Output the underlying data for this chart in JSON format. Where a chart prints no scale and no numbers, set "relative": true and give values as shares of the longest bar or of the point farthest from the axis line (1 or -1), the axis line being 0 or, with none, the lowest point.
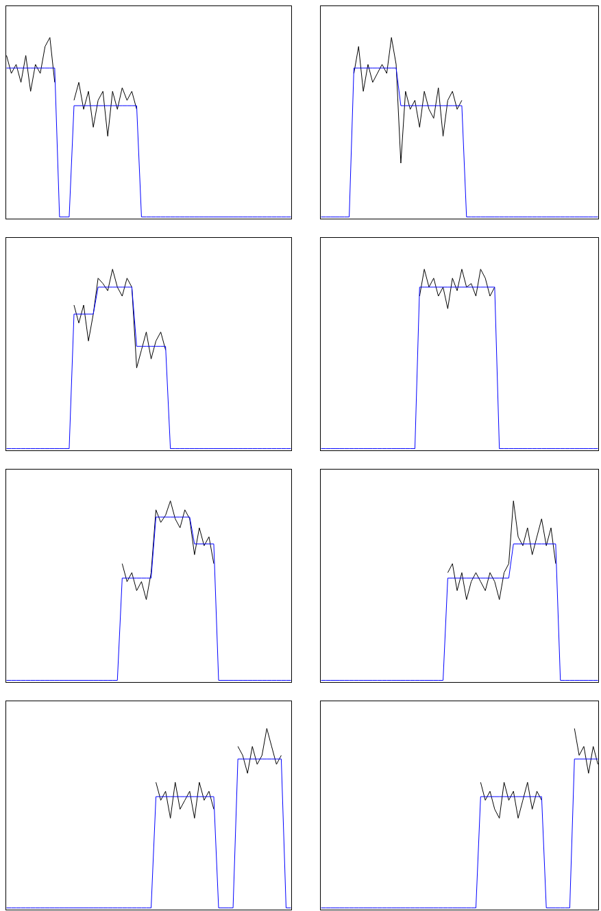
{
  "chart_data": [
    {
      "type": "line",
      "relative": true,
      "categories": [
        null,
        null,
        null,
        null,
        null,
        null,
        null,
        null,
        null,
        null,
        null,
        null,
        null,
        null,
        null,
        null,
        null,
        null,
        null,
        null,
        null,
        null,
        null,
        null,
        null,
        null,
        null,
        null,
        null,
        null,
        null,
        null,
        null,
        null,
        null,
        null,
        null,
        null,
        null,
        null,
        null,
        null,
        null,
        null,
        null,
        null,
        null,
        null,
        null,
        null,
        null,
        null,
        null,
        null,
        null,
        null,
        null,
        null,
        null,
        null
      ],
      "series": [
        {
          "color": "#000000",
          "values": [
            0.9,
            0.8,
            0.85,
            0.75,
            0.9,
            0.7,
            0.85,
            0.8,
            0.95,
            1.0,
            0.75,
            null,
            null,
            null,
            0.65,
            0.75,
            0.6,
            0.7,
            0.5,
            0.65,
            0.7,
            0.45,
            0.7,
            0.6,
            0.72,
            0.65,
            0.7,
            0.6,
            null,
            null,
            null,
            null,
            null,
            null,
            null,
            null,
            null,
            null,
            null,
            null,
            null,
            null,
            null,
            null,
            null,
            null,
            null,
            null,
            null,
            null,
            null,
            null,
            null,
            null,
            null,
            null,
            null,
            null,
            null,
            null
          ]
        },
        {
          "color": "#0000ff",
          "values": [
            0.83,
            0.83,
            0.83,
            0.83,
            0.83,
            0.83,
            0.83,
            0.83,
            0.83,
            0.83,
            0.83,
            0,
            0,
            0,
            0.62,
            0.62,
            0.62,
            0.62,
            0.62,
            0.62,
            0.62,
            0.62,
            0.62,
            0.62,
            0.62,
            0.62,
            0.62,
            0.62,
            0,
            0,
            0,
            0,
            0,
            0,
            0,
            0,
            0,
            0,
            0,
            0,
            0,
            0,
            0,
            0,
            0,
            0,
            0,
            0,
            0,
            0,
            0,
            0,
            0,
            0,
            0,
            0,
            0,
            0,
            0,
            0
          ]
        }
      ]
    },
    {
      "type": "line",
      "relative": true,
      "categories": [
        null,
        null,
        null,
        null,
        null,
        null,
        null,
        null,
        null,
        null,
        null,
        null,
        null,
        null,
        null,
        null,
        null,
        null,
        null,
        null,
        null,
        null,
        null,
        null,
        null,
        null,
        null,
        null,
        null,
        null,
        null,
        null,
        null,
        null,
        null,
        null,
        null,
        null,
        null,
        null,
        null,
        null,
        null,
        null,
        null,
        null,
        null,
        null,
        null,
        null,
        null,
        null,
        null,
        null,
        null,
        null,
        null,
        null,
        null,
        null
      ],
      "series": [
        {
          "color": "#000000",
          "values": [
            null,
            null,
            null,
            null,
            null,
            null,
            null,
            0.8,
            0.95,
            0.7,
            0.85,
            0.75,
            0.8,
            0.85,
            0.8,
            1.0,
            0.85,
            0.3,
            0.7,
            0.6,
            0.65,
            0.5,
            0.7,
            0.6,
            0.55,
            0.72,
            0.45,
            0.65,
            0.7,
            0.6,
            0.65,
            null,
            null,
            null,
            null,
            null,
            null,
            null,
            null,
            null,
            null,
            null,
            null,
            null,
            null,
            null,
            null,
            null,
            null,
            null,
            null,
            null,
            null,
            null,
            null,
            null,
            null,
            null,
            null,
            null
          ]
        },
        {
          "color": "#0000ff",
          "values": [
            0,
            0,
            0,
            0,
            0,
            0,
            0,
            0.83,
            0.83,
            0.83,
            0.83,
            0.83,
            0.83,
            0.83,
            0.83,
            0.83,
            0.83,
            0.62,
            0.62,
            0.62,
            0.62,
            0.62,
            0.62,
            0.62,
            0.62,
            0.62,
            0.62,
            0.62,
            0.62,
            0.62,
            0.62,
            0,
            0,
            0,
            0,
            0,
            0,
            0,
            0,
            0,
            0,
            0,
            0,
            0,
            0,
            0,
            0,
            0,
            0,
            0,
            0,
            0,
            0,
            0,
            0,
            0,
            0,
            0,
            0,
            0
          ]
        }
      ]
    },
    {
      "type": "line",
      "relative": true,
      "categories": [
        null,
        null,
        null,
        null,
        null,
        null,
        null,
        null,
        null,
        null,
        null,
        null,
        null,
        null,
        null,
        null,
        null,
        null,
        null,
        null,
        null,
        null,
        null,
        null,
        null,
        null,
        null,
        null,
        null,
        null,
        null,
        null,
        null,
        null,
        null,
        null,
        null,
        null,
        null,
        null,
        null,
        null,
        null,
        null,
        null,
        null,
        null,
        null,
        null,
        null,
        null,
        null,
        null,
        null,
        null,
        null,
        null,
        null,
        null,
        null
      ],
      "series": [
        {
          "color": "#000000",
          "values": [
            null,
            null,
            null,
            null,
            null,
            null,
            null,
            null,
            null,
            null,
            null,
            null,
            null,
            null,
            0.8,
            0.7,
            0.8,
            0.6,
            0.75,
            0.95,
            0.92,
            0.88,
            1.0,
            0.9,
            0.85,
            0.95,
            0.9,
            0.45,
            0.55,
            0.65,
            0.5,
            0.6,
            0.65,
            0.55,
            null,
            null,
            null,
            null,
            null,
            null,
            null,
            null,
            null,
            null,
            null,
            null,
            null,
            null,
            null,
            null,
            null,
            null,
            null,
            null,
            null,
            null,
            null,
            null,
            null,
            null
          ]
        },
        {
          "color": "#0000ff",
          "values": [
            0,
            0,
            0,
            0,
            0,
            0,
            0,
            0,
            0,
            0,
            0,
            0,
            0,
            0,
            0.75,
            0.75,
            0.75,
            0.75,
            0.75,
            0.9,
            0.9,
            0.9,
            0.9,
            0.9,
            0.9,
            0.9,
            0.9,
            0.57,
            0.57,
            0.57,
            0.57,
            0.57,
            0.57,
            0.57,
            0,
            0,
            0,
            0,
            0,
            0,
            0,
            0,
            0,
            0,
            0,
            0,
            0,
            0,
            0,
            0,
            0,
            0,
            0,
            0,
            0,
            0,
            0,
            0,
            0,
            0
          ]
        }
      ]
    },
    {
      "type": "line",
      "relative": true,
      "categories": [
        null,
        null,
        null,
        null,
        null,
        null,
        null,
        null,
        null,
        null,
        null,
        null,
        null,
        null,
        null,
        null,
        null,
        null,
        null,
        null,
        null,
        null,
        null,
        null,
        null,
        null,
        null,
        null,
        null,
        null,
        null,
        null,
        null,
        null,
        null,
        null,
        null,
        null,
        null,
        null,
        null,
        null,
        null,
        null,
        null,
        null,
        null,
        null,
        null,
        null,
        null,
        null,
        null,
        null,
        null,
        null,
        null,
        null,
        null,
        null
      ],
      "series": [
        {
          "color": "#000000",
          "values": [
            null,
            null,
            null,
            null,
            null,
            null,
            null,
            null,
            null,
            null,
            null,
            null,
            null,
            null,
            null,
            null,
            null,
            null,
            null,
            null,
            null,
            0.85,
            1.0,
            0.9,
            0.95,
            0.85,
            0.9,
            0.78,
            0.95,
            0.88,
            1.0,
            0.9,
            0.92,
            0.85,
            1.0,
            0.95,
            0.85,
            0.9,
            null,
            null,
            null,
            null,
            null,
            null,
            null,
            null,
            null,
            null,
            null,
            null,
            null,
            null,
            null,
            null,
            null,
            null,
            null,
            null,
            null,
            null
          ]
        },
        {
          "color": "#0000ff",
          "values": [
            0,
            0,
            0,
            0,
            0,
            0,
            0,
            0,
            0,
            0,
            0,
            0,
            0,
            0,
            0,
            0,
            0,
            0,
            0,
            0,
            0,
            0.9,
            0.9,
            0.9,
            0.9,
            0.9,
            0.9,
            0.9,
            0.9,
            0.9,
            0.9,
            0.9,
            0.9,
            0.9,
            0.9,
            0.9,
            0.9,
            0.9,
            0,
            0,
            0,
            0,
            0,
            0,
            0,
            0,
            0,
            0,
            0,
            0,
            0,
            0,
            0,
            0,
            0,
            0,
            0,
            0,
            0,
            0
          ]
        }
      ]
    },
    {
      "type": "line",
      "relative": true,
      "categories": [
        null,
        null,
        null,
        null,
        null,
        null,
        null,
        null,
        null,
        null,
        null,
        null,
        null,
        null,
        null,
        null,
        null,
        null,
        null,
        null,
        null,
        null,
        null,
        null,
        null,
        null,
        null,
        null,
        null,
        null,
        null,
        null,
        null,
        null,
        null,
        null,
        null,
        null,
        null,
        null,
        null,
        null,
        null,
        null,
        null,
        null,
        null,
        null,
        null,
        null,
        null,
        null,
        null,
        null,
        null,
        null,
        null,
        null,
        null,
        null
      ],
      "series": [
        {
          "color": "#000000",
          "values": [
            null,
            null,
            null,
            null,
            null,
            null,
            null,
            null,
            null,
            null,
            null,
            null,
            null,
            null,
            null,
            null,
            null,
            null,
            null,
            null,
            null,
            null,
            null,
            null,
            0.65,
            0.55,
            0.6,
            0.5,
            0.55,
            0.45,
            0.6,
            0.95,
            0.88,
            0.92,
            1.0,
            0.9,
            0.85,
            0.95,
            0.9,
            0.7,
            0.85,
            0.75,
            0.8,
            0.65,
            null,
            null,
            null,
            null,
            null,
            null,
            null,
            null,
            null,
            null,
            null,
            null,
            null,
            null,
            null,
            null
          ]
        },
        {
          "color": "#0000ff",
          "values": [
            0,
            0,
            0,
            0,
            0,
            0,
            0,
            0,
            0,
            0,
            0,
            0,
            0,
            0,
            0,
            0,
            0,
            0,
            0,
            0,
            0,
            0,
            0,
            0,
            0.57,
            0.57,
            0.57,
            0.57,
            0.57,
            0.57,
            0.57,
            0.91,
            0.91,
            0.91,
            0.91,
            0.91,
            0.91,
            0.91,
            0.91,
            0.76,
            0.76,
            0.76,
            0.76,
            0.76,
            0,
            0,
            0,
            0,
            0,
            0,
            0,
            0,
            0,
            0,
            0,
            0,
            0,
            0,
            0,
            0
          ]
        }
      ]
    },
    {
      "type": "line",
      "relative": true,
      "categories": [
        null,
        null,
        null,
        null,
        null,
        null,
        null,
        null,
        null,
        null,
        null,
        null,
        null,
        null,
        null,
        null,
        null,
        null,
        null,
        null,
        null,
        null,
        null,
        null,
        null,
        null,
        null,
        null,
        null,
        null,
        null,
        null,
        null,
        null,
        null,
        null,
        null,
        null,
        null,
        null,
        null,
        null,
        null,
        null,
        null,
        null,
        null,
        null,
        null,
        null,
        null,
        null,
        null,
        null,
        null,
        null,
        null,
        null,
        null,
        null
      ],
      "series": [
        {
          "color": "#000000",
          "values": [
            null,
            null,
            null,
            null,
            null,
            null,
            null,
            null,
            null,
            null,
            null,
            null,
            null,
            null,
            null,
            null,
            null,
            null,
            null,
            null,
            null,
            null,
            null,
            null,
            null,
            null,
            null,
            0.6,
            0.65,
            0.5,
            0.6,
            0.45,
            0.55,
            0.6,
            0.55,
            0.5,
            0.6,
            0.55,
            0.45,
            0.6,
            0.65,
            1.0,
            0.8,
            0.75,
            0.85,
            0.7,
            0.8,
            0.9,
            0.75,
            0.85,
            0.65,
            null,
            null,
            null,
            null,
            null,
            null,
            null,
            null,
            null
          ]
        },
        {
          "color": "#0000ff",
          "values": [
            0,
            0,
            0,
            0,
            0,
            0,
            0,
            0,
            0,
            0,
            0,
            0,
            0,
            0,
            0,
            0,
            0,
            0,
            0,
            0,
            0,
            0,
            0,
            0,
            0,
            0,
            0,
            0.57,
            0.57,
            0.57,
            0.57,
            0.57,
            0.57,
            0.57,
            0.57,
            0.57,
            0.57,
            0.57,
            0.57,
            0.57,
            0.57,
            0.76,
            0.76,
            0.76,
            0.76,
            0.76,
            0.76,
            0.76,
            0.76,
            0.76,
            0.76,
            0,
            0,
            0,
            0,
            0,
            0,
            0,
            0,
            0
          ]
        }
      ]
    },
    {
      "type": "line",
      "relative": true,
      "categories": [
        null,
        null,
        null,
        null,
        null,
        null,
        null,
        null,
        null,
        null,
        null,
        null,
        null,
        null,
        null,
        null,
        null,
        null,
        null,
        null,
        null,
        null,
        null,
        null,
        null,
        null,
        null,
        null,
        null,
        null,
        null,
        null,
        null,
        null,
        null,
        null,
        null,
        null,
        null,
        null,
        null,
        null,
        null,
        null,
        null,
        null,
        null,
        null,
        null,
        null,
        null,
        null,
        null,
        null,
        null,
        null,
        null,
        null,
        null,
        null
      ],
      "series": [
        {
          "color": "#000000",
          "values": [
            null,
            null,
            null,
            null,
            null,
            null,
            null,
            null,
            null,
            null,
            null,
            null,
            null,
            null,
            null,
            null,
            null,
            null,
            null,
            null,
            null,
            null,
            null,
            null,
            null,
            null,
            null,
            null,
            null,
            null,
            null,
            0.7,
            0.6,
            0.65,
            0.5,
            0.7,
            0.55,
            0.6,
            0.65,
            0.5,
            0.7,
            0.6,
            0.65,
            0.55,
            null,
            null,
            null,
            null,
            0.9,
            0.85,
            0.75,
            0.9,
            0.8,
            0.85,
            1.0,
            0.9,
            0.8,
            0.85,
            null,
            null
          ]
        },
        {
          "color": "#0000ff",
          "values": [
            0,
            0,
            0,
            0,
            0,
            0,
            0,
            0,
            0,
            0,
            0,
            0,
            0,
            0,
            0,
            0,
            0,
            0,
            0,
            0,
            0,
            0,
            0,
            0,
            0,
            0,
            0,
            0,
            0,
            0,
            0,
            0.62,
            0.62,
            0.62,
            0.62,
            0.62,
            0.62,
            0.62,
            0.62,
            0.62,
            0.62,
            0.62,
            0.62,
            0.62,
            0,
            0,
            0,
            0,
            0.83,
            0.83,
            0.83,
            0.83,
            0.83,
            0.83,
            0.83,
            0.83,
            0.83,
            0.83,
            0,
            0
          ]
        }
      ]
    },
    {
      "type": "line",
      "relative": true,
      "categories": [
        null,
        null,
        null,
        null,
        null,
        null,
        null,
        null,
        null,
        null,
        null,
        null,
        null,
        null,
        null,
        null,
        null,
        null,
        null,
        null,
        null,
        null,
        null,
        null,
        null,
        null,
        null,
        null,
        null,
        null,
        null,
        null,
        null,
        null,
        null,
        null,
        null,
        null,
        null,
        null,
        null,
        null,
        null,
        null,
        null,
        null,
        null,
        null,
        null,
        null,
        null,
        null,
        null,
        null,
        null,
        null,
        null,
        null,
        null,
        null
      ],
      "series": [
        {
          "color": "#000000",
          "values": [
            null,
            null,
            null,
            null,
            null,
            null,
            null,
            null,
            null,
            null,
            null,
            null,
            null,
            null,
            null,
            null,
            null,
            null,
            null,
            null,
            null,
            null,
            null,
            null,
            null,
            null,
            null,
            null,
            null,
            null,
            null,
            null,
            null,
            null,
            0.7,
            0.6,
            0.65,
            0.55,
            0.5,
            0.7,
            0.6,
            0.65,
            0.5,
            0.6,
            0.7,
            0.55,
            0.65,
            0.6,
            null,
            null,
            null,
            null,
            null,
            null,
            1.0,
            0.85,
            0.9,
            0.75,
            0.9,
            0.8
          ]
        },
        {
          "color": "#0000ff",
          "values": [
            0,
            0,
            0,
            0,
            0,
            0,
            0,
            0,
            0,
            0,
            0,
            0,
            0,
            0,
            0,
            0,
            0,
            0,
            0,
            0,
            0,
            0,
            0,
            0,
            0,
            0,
            0,
            0,
            0,
            0,
            0,
            0,
            0,
            0,
            0.62,
            0.62,
            0.62,
            0.62,
            0.62,
            0.62,
            0.62,
            0.62,
            0.62,
            0.62,
            0.62,
            0.62,
            0.62,
            0.62,
            0,
            0,
            0,
            0,
            0,
            0,
            0.83,
            0.83,
            0.83,
            0.83,
            0.83,
            0.83
          ]
        }
      ]
    }
  ]
}
